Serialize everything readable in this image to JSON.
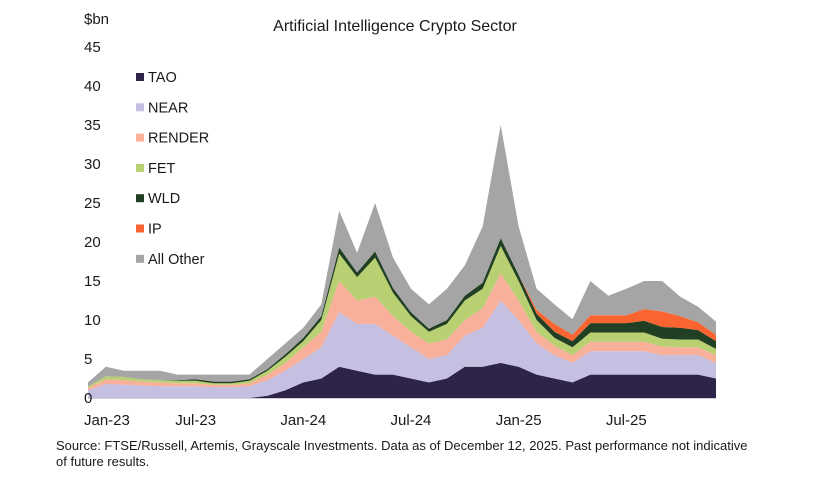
{
  "chart_data": {
    "type": "area",
    "stacked": true,
    "title": "Artificial Intelligence Crypto Sector",
    "ylabel": "$bn",
    "xlabel": "",
    "ylim": [
      0,
      45
    ],
    "yticks": [
      0,
      5,
      10,
      15,
      20,
      25,
      30,
      35,
      40,
      45
    ],
    "xticks": [
      {
        "label": "Jan-23",
        "month": "2023-01"
      },
      {
        "label": "Jul-23",
        "month": "2023-07"
      },
      {
        "label": "Jan-24",
        "month": "2024-01"
      },
      {
        "label": "Jul-24",
        "month": "2024-07"
      },
      {
        "label": "Jan-25",
        "month": "2025-01"
      },
      {
        "label": "Jul-25",
        "month": "2025-07"
      }
    ],
    "x": [
      "2023-01",
      "2023-02",
      "2023-03",
      "2023-04",
      "2023-05",
      "2023-06",
      "2023-07",
      "2023-08",
      "2023-09",
      "2023-10",
      "2023-11",
      "2023-12",
      "2024-01",
      "2024-02",
      "2024-03",
      "2024-04",
      "2024-05",
      "2024-06",
      "2024-07",
      "2024-08",
      "2024-09",
      "2024-10",
      "2024-11",
      "2024-12",
      "2025-01",
      "2025-02",
      "2025-03",
      "2025-04",
      "2025-05",
      "2025-06",
      "2025-07",
      "2025-08",
      "2025-09",
      "2025-10",
      "2025-11",
      "2025-12"
    ],
    "grid": false,
    "legend_position": "top-left",
    "series": [
      {
        "name": "TAO",
        "color": "#2e2449",
        "values": [
          0,
          0,
          0,
          0,
          0,
          0,
          0,
          0,
          0,
          0,
          0.3,
          1,
          2,
          2.5,
          4,
          3.5,
          3,
          3,
          2.5,
          2,
          2.5,
          4,
          4,
          4.5,
          4,
          3,
          2.5,
          2,
          3,
          3,
          3,
          3,
          3,
          3,
          3,
          2.5
        ]
      },
      {
        "name": "NEAR",
        "color": "#c5bfe2",
        "values": [
          1,
          1.8,
          1.7,
          1.6,
          1.5,
          1.5,
          1.5,
          1.4,
          1.4,
          1.5,
          2,
          2.5,
          3,
          4,
          7,
          6,
          6.5,
          5,
          4,
          3,
          3,
          4,
          5,
          8,
          6,
          4,
          3,
          2.5,
          3,
          3,
          3,
          3,
          2.5,
          2.5,
          2.5,
          2
        ]
      },
      {
        "name": "RENDER",
        "color": "#f9b09a",
        "values": [
          0.3,
          0.6,
          0.6,
          0.5,
          0.5,
          0.4,
          0.4,
          0.3,
          0.3,
          0.4,
          0.7,
          1,
          1.5,
          2,
          4,
          3,
          3.5,
          2.5,
          2,
          2,
          2,
          2,
          2.5,
          3.5,
          2.5,
          1.5,
          1.2,
          1,
          1.2,
          1.2,
          1.2,
          1.2,
          1.1,
          1,
          1,
          1
        ]
      },
      {
        "name": "FET",
        "color": "#b8cf72",
        "values": [
          0.2,
          0.4,
          0.4,
          0.3,
          0.3,
          0.3,
          0.3,
          0.2,
          0.2,
          0.3,
          0.5,
          0.8,
          0.8,
          1.5,
          3.5,
          3,
          5,
          3,
          2,
          1.5,
          2,
          2.5,
          2.5,
          3.5,
          2.5,
          1.5,
          1,
          1,
          1.2,
          1.2,
          1.2,
          1.2,
          1,
          1,
          1,
          0.8
        ]
      },
      {
        "name": "WLD",
        "color": "#213f22",
        "values": [
          0,
          0,
          0,
          0,
          0,
          0.1,
          0.2,
          0.2,
          0.2,
          0.2,
          0.2,
          0.3,
          0.4,
          0.5,
          0.8,
          0.6,
          0.8,
          0.6,
          0.5,
          0.4,
          0.5,
          0.6,
          0.8,
          1,
          0.8,
          0.8,
          0.8,
          0.8,
          1.2,
          1.2,
          1.2,
          1.5,
          1.5,
          1.5,
          1.2,
          1
        ]
      },
      {
        "name": "IP",
        "color": "#fa6431",
        "values": [
          0,
          0,
          0,
          0,
          0,
          0,
          0,
          0,
          0,
          0,
          0,
          0,
          0,
          0,
          0,
          0,
          0,
          0,
          0,
          0,
          0,
          0,
          0,
          0,
          0,
          0.5,
          1,
          0.8,
          1,
          1,
          1,
          1.5,
          2,
          1.5,
          1,
          0.8
        ]
      },
      {
        "name": "All Other",
        "color": "#a5a5a5",
        "values": [
          0.5,
          1.2,
          0.8,
          1.1,
          1.2,
          0.7,
          0.6,
          0.9,
          0.9,
          0.6,
          1.3,
          1.4,
          1.3,
          1.5,
          4.7,
          2.5,
          6.2,
          3.9,
          3,
          3.1,
          4,
          3.9,
          7.2,
          14.5,
          6.2,
          2.7,
          2.5,
          2,
          4.4,
          2.5,
          3.4,
          3.6,
          3.9,
          2.5,
          2,
          1.7
        ]
      }
    ]
  },
  "footer": {
    "source": "Source: FTSE/Russell, Artemis, Grayscale Investments. Data as of December 12, 2025. Past performance not indicative of future results."
  }
}
